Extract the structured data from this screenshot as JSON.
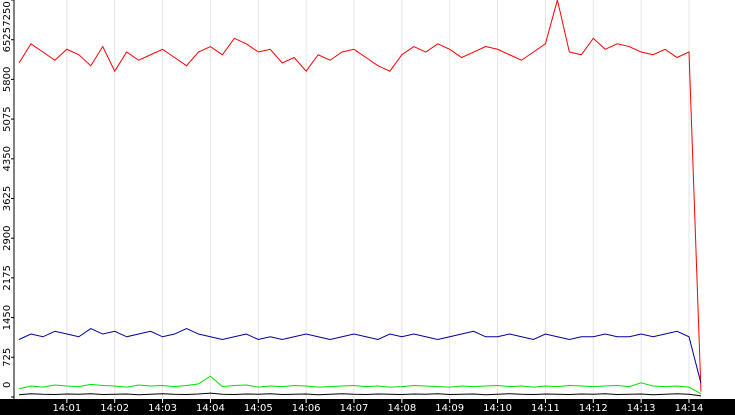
{
  "chart_data": {
    "type": "line",
    "categories": [
      null,
      null,
      null,
      null,
      "14:01",
      null,
      null,
      null,
      "14:02",
      null,
      null,
      null,
      "14:03",
      null,
      null,
      null,
      "14:04",
      null,
      null,
      null,
      "14:05",
      null,
      null,
      null,
      "14:06",
      null,
      null,
      null,
      "14:07",
      null,
      null,
      null,
      "14:08",
      null,
      null,
      null,
      "14:09",
      null,
      null,
      null,
      "14:10",
      null,
      null,
      null,
      "14:11",
      null,
      null,
      null,
      "14:12",
      null,
      null,
      null,
      "14:13",
      null,
      null,
      null,
      "14:14",
      null
    ],
    "series": [
      {
        "color": "#ff0000",
        "values": [
          6100,
          6450,
          6300,
          6150,
          6350,
          6250,
          6050,
          6400,
          5950,
          6300,
          6150,
          6250,
          6350,
          6200,
          6050,
          6300,
          6400,
          6250,
          6550,
          6450,
          6300,
          6350,
          6100,
          6200,
          5950,
          6250,
          6150,
          6300,
          6350,
          6200,
          6050,
          5950,
          6250,
          6400,
          6300,
          6450,
          6350,
          6200,
          6300,
          6400,
          6350,
          6250,
          6150,
          6300,
          6450,
          7250,
          6300,
          6250,
          6550,
          6350,
          6450,
          6400,
          6300,
          6250,
          6350,
          6200,
          6300,
          100
        ]
      },
      {
        "color": "#0000a0",
        "values": [
          1050,
          1150,
          1100,
          1200,
          1150,
          1100,
          1250,
          1150,
          1200,
          1100,
          1150,
          1200,
          1100,
          1150,
          1250,
          1150,
          1100,
          1050,
          1100,
          1150,
          1050,
          1100,
          1050,
          1100,
          1150,
          1100,
          1050,
          1100,
          1150,
          1100,
          1050,
          1150,
          1100,
          1150,
          1100,
          1050,
          1100,
          1150,
          1200,
          1100,
          1100,
          1150,
          1100,
          1050,
          1150,
          1100,
          1050,
          1100,
          1100,
          1150,
          1100,
          1100,
          1150,
          1100,
          1150,
          1200,
          1100,
          250
        ]
      },
      {
        "color": "#00e000",
        "values": [
          150,
          200,
          180,
          220,
          200,
          190,
          230,
          210,
          200,
          180,
          220,
          200,
          210,
          190,
          210,
          240,
          380,
          190,
          210,
          220,
          180,
          200,
          190,
          210,
          200,
          180,
          190,
          200,
          210,
          190,
          200,
          180,
          190,
          210,
          200,
          190,
          180,
          200,
          190,
          200,
          210,
          190,
          200,
          180,
          200,
          190,
          210,
          200,
          190,
          200,
          210,
          190,
          260,
          200,
          190,
          200,
          180,
          60
        ]
      },
      {
        "color": "#000000",
        "values": [
          40,
          60,
          50,
          45,
          55,
          50,
          60,
          45,
          50,
          55,
          40,
          50,
          60,
          50,
          45,
          55,
          70,
          50,
          45,
          55,
          50,
          60,
          45,
          50,
          55,
          40,
          50,
          60,
          50,
          45,
          55,
          50,
          45,
          55,
          50,
          60,
          45,
          50,
          55,
          40,
          50,
          60,
          50,
          45,
          55,
          50,
          45,
          55,
          50,
          60,
          45,
          50,
          55,
          40,
          50,
          60,
          50,
          20
        ]
      }
    ],
    "ylim": [
      0,
      7250
    ],
    "yticks": [
      0,
      725,
      1450,
      2175,
      2900,
      3625,
      4350,
      5075,
      5800,
      6525,
      7250
    ],
    "grid": true
  }
}
